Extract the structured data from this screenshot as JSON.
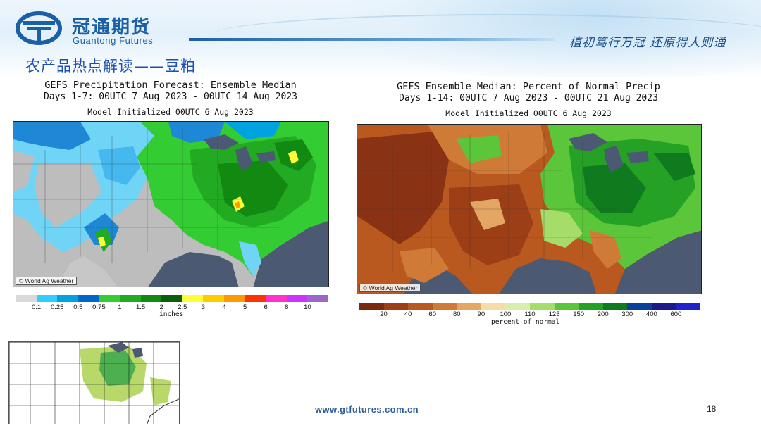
{
  "header": {
    "company_cn": "冠通期货",
    "company_en": "Guantong Futures",
    "slogan": "植初笃行万冠  还原得人则通",
    "section_title": "农产品热点解读——豆粕"
  },
  "colors": {
    "brand_blue": "#1b5fa6",
    "title_blue": "#1b4fb4",
    "water": "#4b5a72"
  },
  "map_left": {
    "title_line1": "GEFS Precipitation Forecast: Ensemble Median",
    "title_line2": "Days 1-7: 00UTC 7 Aug 2023 - 00UTC 14 Aug 2023",
    "title_line3": "Model Initialized 00UTC 6 Aug 2023",
    "credit": "© World Ag Weather",
    "legend_unit": "inches",
    "legend_labels": [
      "0.1",
      "0.25",
      "0.5",
      "0.75",
      "1",
      "1.5",
      "2",
      "2.5",
      "3",
      "4",
      "5",
      "6",
      "8",
      "10"
    ],
    "legend_colors": [
      "#d9d9d9",
      "#33ccff",
      "#00a3e0",
      "#0066cc",
      "#33cc33",
      "#22aa22",
      "#128a12",
      "#0b5e0b",
      "#ffff33",
      "#ffcc00",
      "#ff9900",
      "#ff3300",
      "#ff33cc",
      "#cc33ff",
      "#9966cc"
    ]
  },
  "map_right": {
    "title_line1": "GEFS Ensemble Median: Percent of Normal Precip",
    "title_line2": "Days 1-14: 00UTC 7 Aug 2023 - 00UTC 21 Aug 2023",
    "title_line3": "Model Initialized 00UTC 6 Aug 2023",
    "credit": "© World Ag Weather",
    "legend_unit": "percent of normal",
    "legend_labels": [
      "20",
      "40",
      "60",
      "80",
      "90",
      "100",
      "110",
      "125",
      "150",
      "200",
      "300",
      "400",
      "600"
    ],
    "legend_colors": [
      "#7a2a10",
      "#9c3e16",
      "#b9581f",
      "#cf7a36",
      "#e3a763",
      "#f5dca8",
      "#d7eeb0",
      "#a6dc6a",
      "#5cc63a",
      "#25a125",
      "#0f7a1e",
      "#0b3f9c",
      "#1a1a8a",
      "#2222cc"
    ]
  },
  "thumbnail": {
    "description_colors": [
      "#ffffff",
      "#b8d96a",
      "#4caf50"
    ]
  },
  "footer": {
    "url": "www.gtfutures.com.cn",
    "page_number": "18"
  }
}
